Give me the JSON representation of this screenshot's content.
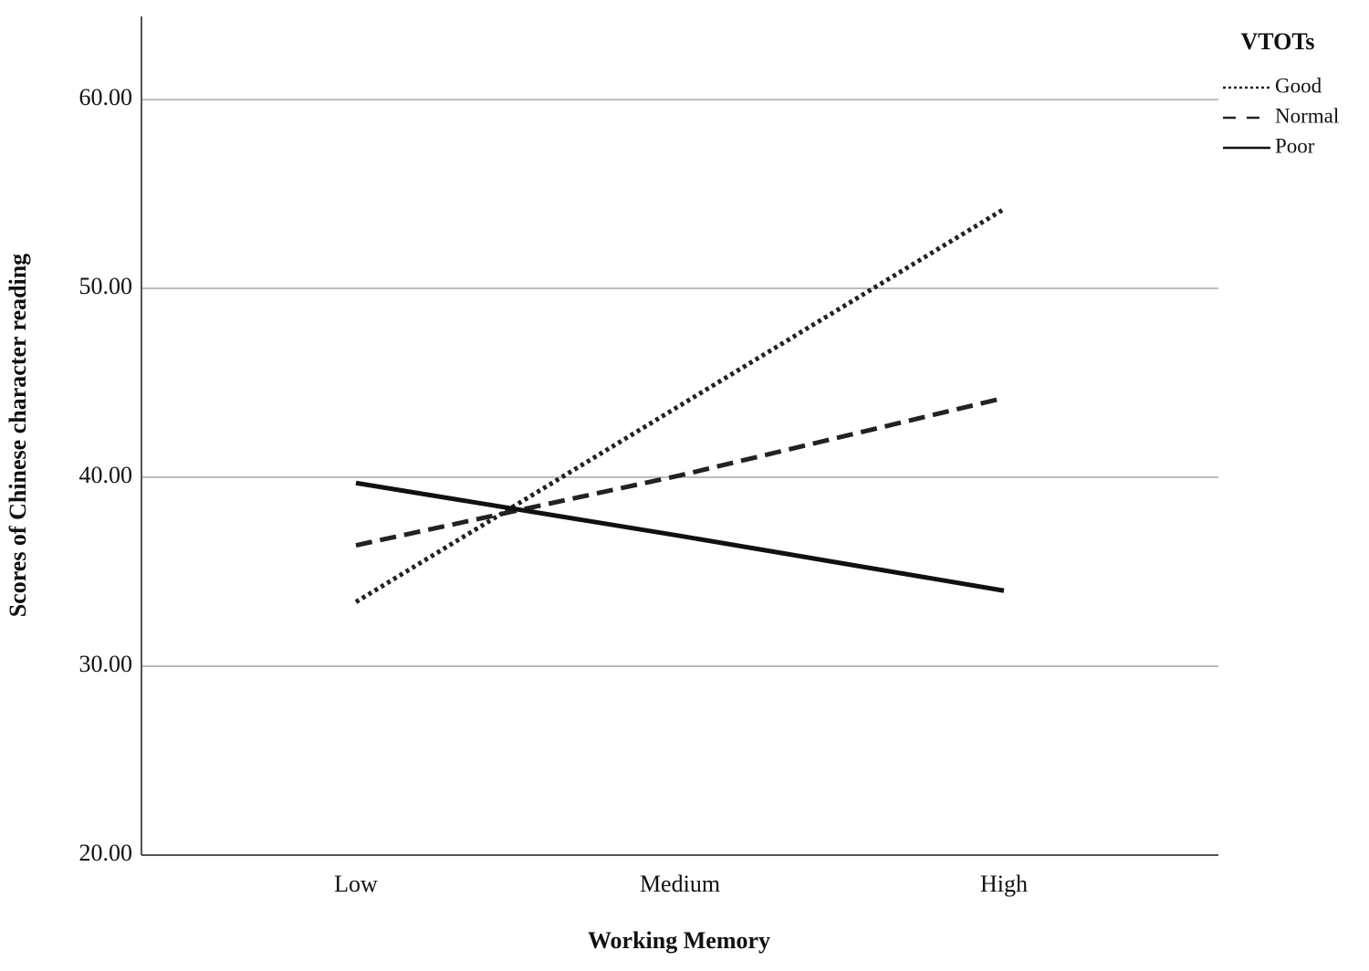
{
  "chart_data": {
    "type": "line",
    "x_label": "Working Memory",
    "y_label": "Scores of Chinese character reading",
    "categories": [
      "Low",
      "Medium",
      "High"
    ],
    "series": [
      {
        "name": "Good",
        "color": "#222222",
        "dash": "dotted",
        "values": [
          33.4,
          43.8,
          54.2
        ]
      },
      {
        "name": "Normal",
        "color": "#222222",
        "dash": "dashed",
        "values": [
          36.4,
          40.1,
          44.2
        ]
      },
      {
        "name": "Poor",
        "color": "#111111",
        "dash": "solid",
        "values": [
          39.7,
          36.9,
          34.0
        ]
      }
    ],
    "legend_title": "VTOTs",
    "legend": "top-right",
    "ylim": [
      20,
      64.4
    ],
    "yticks": [
      {
        "value": 20,
        "label": "20.00"
      },
      {
        "value": 30,
        "label": "30.00"
      },
      {
        "value": 40,
        "label": "40.00"
      },
      {
        "value": 50,
        "label": "50.00"
      },
      {
        "value": 60,
        "label": "60.00"
      }
    ],
    "grid": true
  }
}
